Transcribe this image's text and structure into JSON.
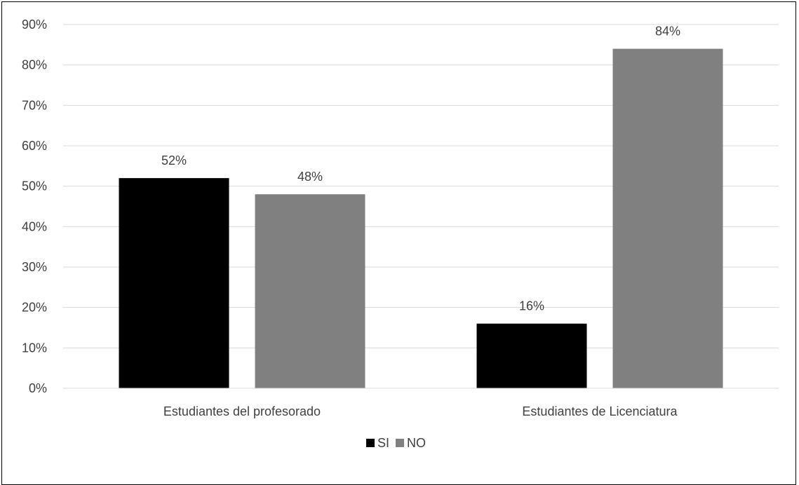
{
  "chart_data": {
    "type": "bar",
    "categories": [
      "Estudiantes del profesorado",
      "Estudiantes de Licenciatura"
    ],
    "series": [
      {
        "name": "SI",
        "values": [
          52,
          16
        ],
        "color": "#000000"
      },
      {
        "name": "NO",
        "values": [
          48,
          84
        ],
        "color": "#808080"
      }
    ],
    "data_labels": [
      [
        "52%",
        "16%"
      ],
      [
        "48%",
        "84%"
      ]
    ],
    "y_ticks": [
      "0%",
      "10%",
      "20%",
      "30%",
      "40%",
      "50%",
      "60%",
      "70%",
      "80%",
      "90%"
    ],
    "ylim": [
      0,
      90
    ],
    "grid": true,
    "legend_position": "bottom",
    "title": "",
    "xlabel": "",
    "ylabel": ""
  }
}
